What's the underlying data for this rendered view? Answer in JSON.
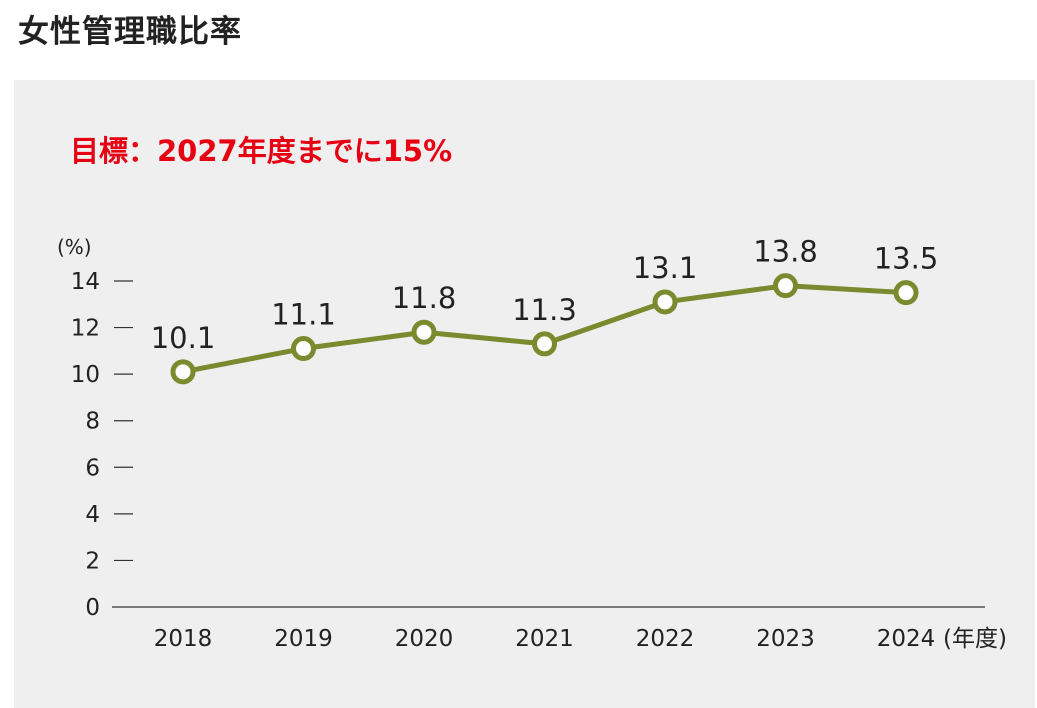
{
  "page": {
    "title": "女性管理職比率"
  },
  "goal": {
    "text": "目標：2027年度までに15%"
  },
  "chart_data": {
    "type": "line",
    "categories": [
      "2018",
      "2019",
      "2020",
      "2021",
      "2022",
      "2023",
      "2024"
    ],
    "series": [
      {
        "values": [
          10.1,
          11.1,
          11.8,
          11.3,
          13.1,
          13.8,
          13.5
        ],
        "data_labels": [
          "10.1",
          "11.1",
          "11.8",
          "11.3",
          "13.1",
          "13.8",
          "13.5"
        ],
        "color": "#7a8a2e",
        "marker": "hollow-circle"
      }
    ],
    "y_unit_label": "(%)",
    "x_unit_label": "(年度)",
    "ylim": [
      0,
      14
    ],
    "y_ticks": [
      0,
      2,
      4,
      6,
      8,
      10,
      12,
      14
    ],
    "grid": false,
    "colors": {
      "line": "#7a8a2e",
      "marker_fill": "#ffffff",
      "axis": "#333333",
      "background": "#efefef",
      "goal_text": "#e60012"
    }
  }
}
